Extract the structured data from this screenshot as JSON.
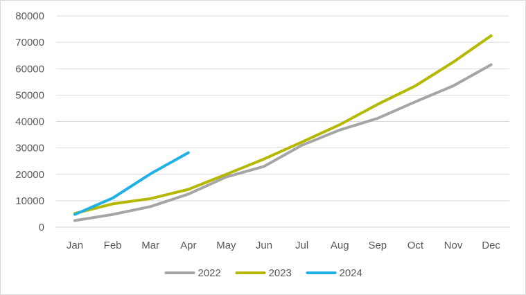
{
  "chart_data": {
    "type": "line",
    "title": "",
    "xlabel": "",
    "ylabel": "",
    "categories": [
      "Jan",
      "Feb",
      "Mar",
      "Apr",
      "May",
      "Jun",
      "Jul",
      "Aug",
      "Sep",
      "Oct",
      "Nov",
      "Dec"
    ],
    "ylim": [
      0,
      80000
    ],
    "yticks": [
      "0",
      "10000",
      "20000",
      "30000",
      "40000",
      "50000",
      "60000",
      "70000",
      "80000"
    ],
    "grid": true,
    "legend_position": "bottom",
    "series": [
      {
        "name": "2022",
        "color": "#a5a5a5",
        "values": [
          2500,
          4800,
          7800,
          12500,
          19000,
          23000,
          31000,
          36800,
          41200,
          47500,
          53500,
          61500
        ]
      },
      {
        "name": "2023",
        "color": "#b5b800",
        "values": [
          5200,
          8800,
          10800,
          14300,
          20000,
          25800,
          32200,
          38800,
          46500,
          53500,
          62500,
          72500
        ]
      },
      {
        "name": "2024",
        "color": "#1fb1e6",
        "values": [
          4800,
          11000,
          20200,
          28200,
          null,
          null,
          null,
          null,
          null,
          null,
          null,
          null
        ]
      }
    ]
  }
}
